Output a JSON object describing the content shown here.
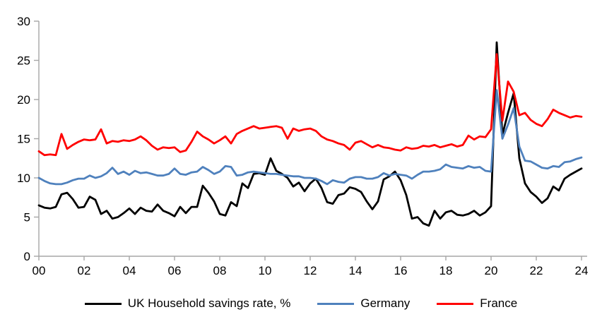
{
  "chart_data": {
    "type": "line",
    "title": "",
    "xlabel": "",
    "ylabel": "",
    "grid": false,
    "legend_position": "bottom",
    "axis_color": "#A6A6A6",
    "tick_label_color": "#000000",
    "ylim": [
      0,
      30
    ],
    "y_ticks": [
      0,
      5,
      10,
      15,
      20,
      25,
      30
    ],
    "x_tick_years": [
      2000,
      2002,
      2004,
      2006,
      2008,
      2010,
      2012,
      2014,
      2016,
      2018,
      2020,
      2022,
      2024
    ],
    "x_tick_labels": [
      "00",
      "02",
      "04",
      "06",
      "08",
      "10",
      "12",
      "14",
      "16",
      "18",
      "20",
      "22",
      "24"
    ],
    "x_start": 2000,
    "x_step": 0.25,
    "x_end": 2024.0,
    "series": [
      {
        "name": "UK Household savings rate, %",
        "color": "#000000",
        "values": [
          6.5,
          6.2,
          6.1,
          6.3,
          7.9,
          8.1,
          7.3,
          6.2,
          6.3,
          7.6,
          7.2,
          5.4,
          5.8,
          4.8,
          5.0,
          5.5,
          6.1,
          5.4,
          6.2,
          5.8,
          5.7,
          6.6,
          5.8,
          5.5,
          5.1,
          6.3,
          5.5,
          6.3,
          6.3,
          9.0,
          8.1,
          7.0,
          5.4,
          5.2,
          6.9,
          6.4,
          9.3,
          8.7,
          10.5,
          10.6,
          10.4,
          12.5,
          10.9,
          10.5,
          10.0,
          8.9,
          9.4,
          8.3,
          9.3,
          9.9,
          8.7,
          6.9,
          6.7,
          7.8,
          8.0,
          8.8,
          8.6,
          8.2,
          7.0,
          6.0,
          7.0,
          9.8,
          10.2,
          10.8,
          9.7,
          7.8,
          4.8,
          5.0,
          4.2,
          3.9,
          5.8,
          4.8,
          5.6,
          5.8,
          5.3,
          5.2,
          5.4,
          5.8,
          5.2,
          5.6,
          6.4,
          27.3,
          15.5,
          18.3,
          20.8,
          12.5,
          9.3,
          8.2,
          7.6,
          6.8,
          7.4,
          8.9,
          8.4,
          9.9,
          10.4,
          10.8,
          11.2
        ]
      },
      {
        "name": "Germany",
        "color": "#4F81BD",
        "values": [
          10.0,
          9.6,
          9.3,
          9.2,
          9.2,
          9.4,
          9.7,
          9.9,
          9.9,
          10.3,
          10.0,
          10.2,
          10.6,
          11.3,
          10.5,
          10.8,
          10.4,
          10.9,
          10.6,
          10.7,
          10.5,
          10.3,
          10.3,
          10.5,
          11.2,
          10.5,
          10.4,
          10.7,
          10.8,
          11.4,
          11.0,
          10.5,
          10.8,
          11.5,
          11.4,
          10.3,
          10.4,
          10.7,
          10.8,
          10.7,
          10.6,
          10.5,
          10.5,
          10.4,
          10.3,
          10.2,
          10.2,
          10.0,
          10.0,
          9.9,
          9.6,
          9.2,
          9.7,
          9.5,
          9.4,
          9.9,
          10.1,
          10.1,
          9.9,
          9.9,
          10.1,
          10.6,
          10.3,
          10.5,
          10.4,
          10.3,
          9.9,
          10.4,
          10.8,
          10.8,
          10.9,
          11.1,
          11.7,
          11.4,
          11.3,
          11.2,
          11.5,
          11.3,
          11.4,
          10.9,
          10.8,
          21.2,
          15.0,
          16.8,
          18.9,
          14.0,
          12.2,
          12.1,
          11.7,
          11.3,
          11.2,
          11.5,
          11.4,
          12.0,
          12.1,
          12.4,
          12.6
        ]
      },
      {
        "name": "France",
        "color": "#FF0000",
        "values": [
          13.4,
          12.9,
          13.0,
          12.9,
          15.6,
          13.7,
          14.2,
          14.6,
          14.9,
          14.8,
          14.9,
          16.2,
          14.4,
          14.7,
          14.6,
          14.8,
          14.7,
          14.9,
          15.3,
          14.8,
          14.1,
          13.6,
          13.9,
          13.8,
          13.9,
          13.3,
          13.5,
          14.6,
          15.9,
          15.3,
          14.9,
          14.4,
          14.8,
          15.3,
          14.4,
          15.6,
          16.0,
          16.3,
          16.6,
          16.3,
          16.4,
          16.5,
          16.6,
          16.4,
          15.0,
          16.3,
          16.0,
          16.2,
          16.3,
          16.0,
          15.3,
          14.9,
          14.7,
          14.4,
          14.2,
          13.6,
          14.5,
          14.7,
          14.3,
          13.9,
          14.2,
          13.9,
          13.8,
          13.6,
          13.5,
          13.9,
          13.7,
          13.8,
          14.1,
          14.0,
          14.2,
          13.9,
          14.1,
          14.3,
          14.0,
          14.2,
          15.4,
          14.9,
          15.3,
          15.2,
          16.2,
          25.8,
          17.3,
          22.3,
          21.0,
          18.0,
          18.3,
          17.4,
          16.9,
          16.6,
          17.5,
          18.7,
          18.3,
          18.0,
          17.7,
          17.9,
          17.8
        ]
      }
    ]
  }
}
